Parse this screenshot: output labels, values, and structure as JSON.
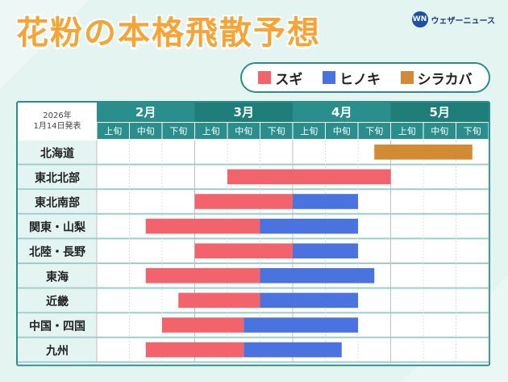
{
  "title": "花粉の本格飛散予想",
  "logo": {
    "mark": "WN",
    "text": "ウェザーニュース"
  },
  "note": {
    "line1": "2026年",
    "line2": "1月14日発表"
  },
  "legend": [
    {
      "label": "スギ",
      "color": "#f2636b"
    },
    {
      "label": "ヒノキ",
      "color": "#4a73e0"
    },
    {
      "label": "シラカバ",
      "color": "#d28a35"
    }
  ],
  "chart_data": {
    "type": "gantt",
    "months": [
      "2月",
      "3月",
      "4月",
      "5月"
    ],
    "periods": [
      "上旬",
      "中旬",
      "下旬"
    ],
    "regions": [
      "北海道",
      "東北北部",
      "東北南部",
      "関東・山梨",
      "北陸・長野",
      "東海",
      "近畿",
      "中国・四国",
      "九州"
    ],
    "series": [
      {
        "name": "スギ",
        "color": "#f2636b",
        "spans": [
          null,
          [
            4,
            9
          ],
          [
            3,
            6
          ],
          [
            1.5,
            5
          ],
          [
            3,
            6
          ],
          [
            1.5,
            5
          ],
          [
            2.5,
            5
          ],
          [
            2,
            4.5
          ],
          [
            1.5,
            4.5
          ]
        ]
      },
      {
        "name": "ヒノキ",
        "color": "#4a73e0",
        "spans": [
          null,
          null,
          [
            6,
            8
          ],
          [
            5,
            8
          ],
          [
            6,
            8
          ],
          [
            5,
            8.5
          ],
          [
            5,
            8
          ],
          [
            4.5,
            8
          ],
          [
            4.5,
            7.5
          ]
        ]
      },
      {
        "name": "シラカバ",
        "color": "#d28a35",
        "spans": [
          [
            8.5,
            11.5
          ],
          null,
          null,
          null,
          null,
          null,
          null,
          null,
          null
        ]
      }
    ]
  }
}
